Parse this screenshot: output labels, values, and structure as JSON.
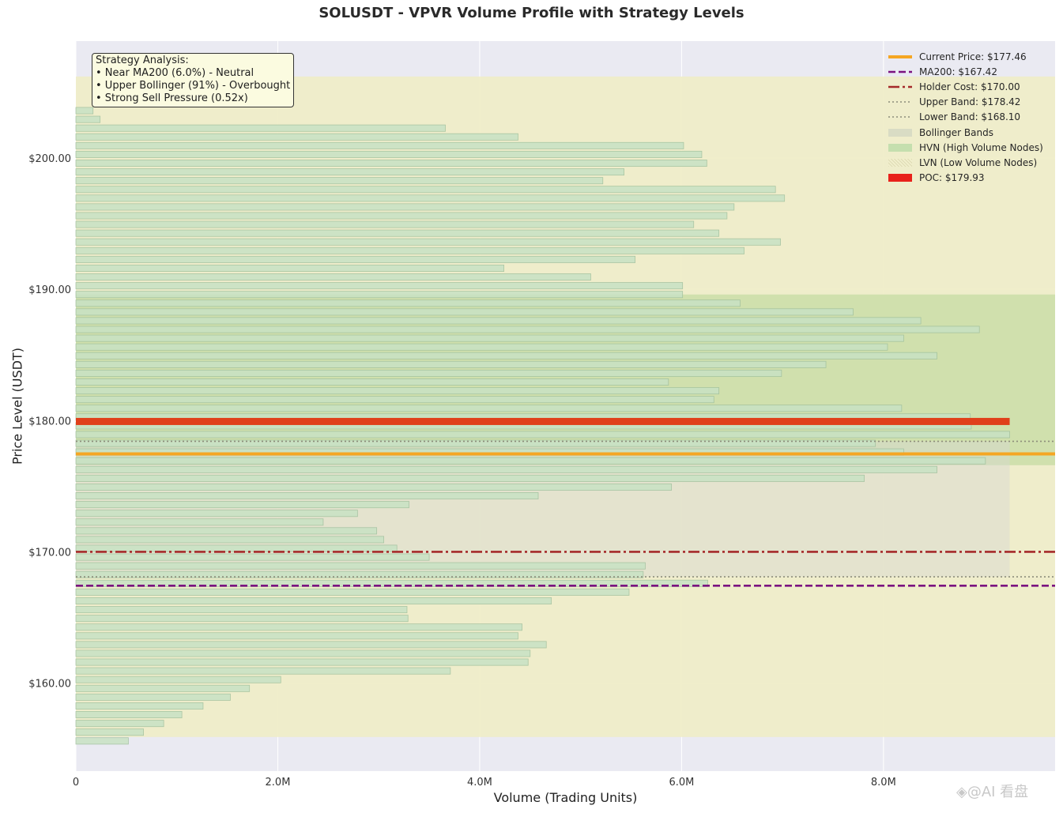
{
  "chart_data": {
    "type": "bar",
    "orientation": "horizontal",
    "title": "SOLUSDT - VPVR Volume Profile with Strategy Levels",
    "xlabel": "Volume (Trading Units)",
    "ylabel": "Price Level (USDT)",
    "xlim": [
      0,
      9700000
    ],
    "ylim": [
      153.3,
      208.9
    ],
    "x_ticks": [
      {
        "value": 0,
        "label": "0"
      },
      {
        "value": 2000000,
        "label": "2.0M"
      },
      {
        "value": 4000000,
        "label": "4.0M"
      },
      {
        "value": 6000000,
        "label": "6.0M"
      },
      {
        "value": 8000000,
        "label": "8.0M"
      }
    ],
    "y_ticks": [
      {
        "value": 160,
        "label": "$160.00"
      },
      {
        "value": 170,
        "label": "$170.00"
      },
      {
        "value": 180,
        "label": "$180.00"
      },
      {
        "value": 190,
        "label": "$190.00"
      },
      {
        "value": 200,
        "label": "$200.00"
      }
    ],
    "grid": true,
    "legend_position": "top-right",
    "price_bin_start": 155.6,
    "price_bin_step": 0.6667,
    "volumes": [
      520000,
      670000,
      870000,
      1050000,
      1260000,
      1530000,
      1720000,
      2030000,
      3710000,
      4480000,
      4500000,
      4660000,
      4380000,
      4420000,
      3290000,
      3280000,
      4710000,
      5480000,
      6260000,
      5620000,
      5640000,
      3500000,
      3180000,
      3050000,
      2980000,
      2450000,
      2790000,
      3300000,
      4580000,
      5900000,
      7810000,
      8530000,
      9010000,
      8200000,
      7920000,
      9250000,
      8870000,
      8860000,
      8180000,
      6320000,
      6370000,
      5870000,
      6990000,
      7430000,
      8530000,
      8040000,
      8200000,
      8950000,
      8370000,
      7700000,
      6580000,
      6010000,
      6010000,
      5100000,
      4240000,
      5540000,
      6620000,
      6980000,
      6370000,
      6120000,
      6450000,
      6520000,
      7020000,
      6930000,
      5220000,
      5430000,
      6250000,
      6200000,
      6020000,
      4380000,
      3660000,
      240000,
      170000
    ],
    "bollinger_band": [
      168.1,
      178.42
    ],
    "bollinger_max_volume": 9250000,
    "hvn_zone": [
      176.6,
      189.6
    ],
    "lvn_zone": [
      155.9,
      206.2
    ],
    "poc_price": 179.93,
    "poc_volume": 9250000,
    "levels": [
      {
        "name": "Current Price",
        "value": 177.46,
        "color": "#f5a623",
        "style": "solid"
      },
      {
        "name": "MA200",
        "value": 167.42,
        "color": "#7b1380",
        "style": "dashed"
      },
      {
        "name": "Holder Cost",
        "value": 170.0,
        "color": "#a52a2a",
        "style": "dashdot"
      },
      {
        "name": "Upper Band",
        "value": 178.42,
        "color": "#8c8c7a",
        "style": "dotted"
      },
      {
        "name": "Lower Band",
        "value": 168.1,
        "color": "#8c8c7a",
        "style": "dotted"
      }
    ]
  },
  "analysis": {
    "heading": "Strategy Analysis:",
    "line1": "• Near MA200 (6.0%) - Neutral",
    "line2": "• Upper Bollinger (91%) - Overbought",
    "line3": "• Strong Sell Pressure (0.52x)"
  },
  "legend": [
    {
      "label": "Current Price: $177.46",
      "kind": "line",
      "color": "#f5a623",
      "style": "solid"
    },
    {
      "label": "MA200: $167.42",
      "kind": "line",
      "color": "#7b1380",
      "style": "dashed"
    },
    {
      "label": "Holder Cost: $170.00",
      "kind": "line",
      "color": "#a52a2a",
      "style": "dashdot"
    },
    {
      "label": "Upper Band: $178.42",
      "kind": "line",
      "color": "#8c8c7a",
      "style": "dotted"
    },
    {
      "label": "Lower Band: $168.10",
      "kind": "line",
      "color": "#8c8c7a",
      "style": "dotted"
    },
    {
      "label": "Bollinger Bands",
      "kind": "patch",
      "color": "#d9dcc4",
      "style": "fill"
    },
    {
      "label": "HVN (High Volume Nodes)",
      "kind": "patch",
      "color": "#c5dfae",
      "style": "fill"
    },
    {
      "label": "LVN (Low Volume Nodes)",
      "kind": "patch",
      "color": "#f1efcd",
      "style": "hatch"
    },
    {
      "label": "POC: $179.93",
      "kind": "patch",
      "color": "#e8211b",
      "style": "fill"
    }
  ],
  "colors": {
    "plot_background": "#eaeaf2",
    "volume_bar_fill": "#c8e2c4",
    "volume_bar_edge": "#9fbf9c",
    "lvn_fill": "#efedc8",
    "hvn_fill": "#bfd99d",
    "bollinger_fill": "#d7d6d2",
    "poc": "#e0401a"
  },
  "watermark": "◈@AI 看盘"
}
